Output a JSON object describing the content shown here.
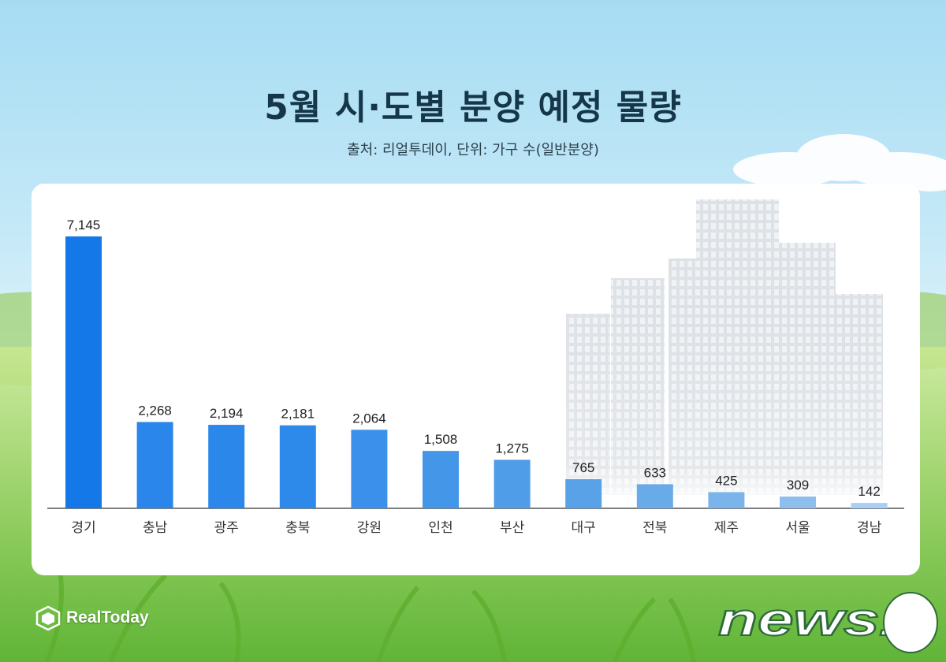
{
  "header": {
    "title": "5월 시·도별 분양 예정 물량",
    "subtitle": "출처: 리얼투데이, 단위: 가구 수(일반분양)"
  },
  "chart_data": {
    "type": "bar",
    "categories": [
      "경기",
      "충남",
      "광주",
      "충북",
      "강원",
      "인천",
      "부산",
      "대구",
      "전북",
      "제주",
      "서울",
      "경남"
    ],
    "values": [
      7145,
      2268,
      2194,
      2181,
      2064,
      1508,
      1275,
      765,
      633,
      425,
      309,
      142
    ],
    "value_labels": [
      "7,145",
      "2,268",
      "2,194",
      "2,181",
      "2,064",
      "1,508",
      "1,275",
      "765",
      "633",
      "425",
      "309",
      "142"
    ],
    "ylim": [
      0,
      7145
    ],
    "grid": false,
    "legend": "none",
    "colors": [
      "#1478e8",
      "#2a86ea",
      "#2b88ea",
      "#2d8aea",
      "#3a90ea",
      "#4496e8",
      "#4f9ce8",
      "#5aa2e8",
      "#69aae8",
      "#7bb4ea",
      "#8dbeee",
      "#a9d0f4"
    ]
  },
  "branding": {
    "left_logo": "RealToday",
    "right_logo": "news1",
    "left_logo_icon": "realtoday-logo-icon",
    "right_logo_icon": "news1-logo-icon"
  }
}
